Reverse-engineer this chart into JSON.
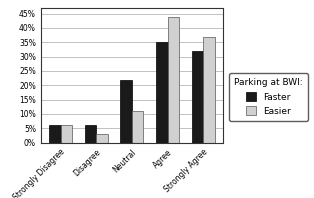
{
  "categories": [
    "Strongly Disagree",
    "Disagree",
    "Neutral",
    "Agree",
    "Strongly Agree"
  ],
  "faster": [
    6,
    6,
    22,
    35,
    32
  ],
  "easier": [
    6,
    3,
    11,
    44,
    37
  ],
  "faster_color": "#1a1a1a",
  "easier_color": "#d0d0d0",
  "faster_edge": "#000000",
  "easier_edge": "#555555",
  "ylim": [
    0,
    47
  ],
  "yticks": [
    0,
    5,
    10,
    15,
    20,
    25,
    30,
    35,
    40,
    45
  ],
  "legend_title": "Parking at BWI:",
  "legend_faster": "Faster",
  "legend_easier": "Easier",
  "background_color": "#ffffff",
  "plot_background": "#ffffff",
  "bar_width": 0.32,
  "tick_fontsize": 5.5,
  "xlabel_fontsize": 5.5,
  "legend_fontsize": 6.5,
  "legend_title_fontsize": 6.5
}
